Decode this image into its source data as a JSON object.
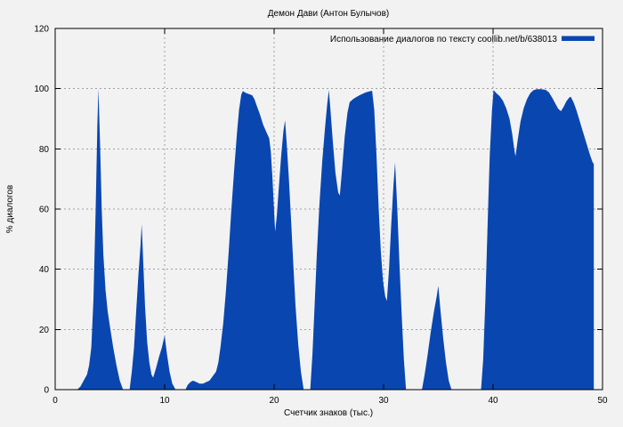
{
  "chart_data": {
    "type": "area",
    "title": "Демон Дави (Антон Булычов)",
    "xlabel": "Счетчик знаков (тыс.)",
    "ylabel": "% диалогов",
    "xlim": [
      0,
      50
    ],
    "ylim": [
      0,
      120
    ],
    "xticks": [
      "0",
      "10",
      "20",
      "30",
      "40",
      "50"
    ],
    "yticks": [
      "0",
      "20",
      "40",
      "60",
      "80",
      "100",
      "120"
    ],
    "grid": true,
    "grid_style": "dashed",
    "legend": {
      "label": "Использование диалогов по тексту coollib.net/b/638013",
      "position": "top-right",
      "swatch_color": "#0a46b0"
    },
    "series": [
      {
        "name": "Использование диалогов по тексту coollib.net/b/638013",
        "color": "#0a46b0",
        "x_unit": "тыс. знаков",
        "y_unit": "% диалогов",
        "points": [
          [
            2.0,
            0
          ],
          [
            2.3,
            1
          ],
          [
            2.6,
            3
          ],
          [
            2.9,
            5
          ],
          [
            3.1,
            8
          ],
          [
            3.3,
            14
          ],
          [
            3.5,
            30
          ],
          [
            3.7,
            60
          ],
          [
            3.85,
            88
          ],
          [
            3.95,
            100
          ],
          [
            4.1,
            82
          ],
          [
            4.25,
            60
          ],
          [
            4.4,
            45
          ],
          [
            4.6,
            33
          ],
          [
            4.8,
            26
          ],
          [
            5.0,
            21
          ],
          [
            5.3,
            14
          ],
          [
            5.6,
            8
          ],
          [
            5.9,
            3
          ],
          [
            6.2,
            0
          ],
          [
            6.8,
            0
          ],
          [
            7.0,
            6
          ],
          [
            7.2,
            14
          ],
          [
            7.4,
            26
          ],
          [
            7.6,
            38
          ],
          [
            7.8,
            48
          ],
          [
            7.9,
            55
          ],
          [
            8.05,
            42
          ],
          [
            8.2,
            28
          ],
          [
            8.4,
            16
          ],
          [
            8.6,
            9
          ],
          [
            8.8,
            5
          ],
          [
            8.95,
            4
          ],
          [
            9.2,
            7
          ],
          [
            9.5,
            11
          ],
          [
            9.75,
            14
          ],
          [
            10.0,
            18
          ],
          [
            10.2,
            12
          ],
          [
            10.45,
            6
          ],
          [
            10.7,
            2
          ],
          [
            11.0,
            0
          ],
          [
            11.9,
            0
          ],
          [
            12.1,
            1.5
          ],
          [
            12.35,
            2.5
          ],
          [
            12.6,
            3
          ],
          [
            12.9,
            2.5
          ],
          [
            13.2,
            2
          ],
          [
            13.5,
            2
          ],
          [
            13.8,
            2.5
          ],
          [
            14.1,
            3
          ],
          [
            14.4,
            4.5
          ],
          [
            14.7,
            6
          ],
          [
            14.9,
            9
          ],
          [
            15.1,
            14
          ],
          [
            15.35,
            22
          ],
          [
            15.6,
            33
          ],
          [
            15.85,
            46
          ],
          [
            16.1,
            60
          ],
          [
            16.35,
            73
          ],
          [
            16.6,
            85
          ],
          [
            16.8,
            93
          ],
          [
            17.0,
            98
          ],
          [
            17.15,
            99.2
          ],
          [
            17.4,
            98.6
          ],
          [
            17.7,
            98.2
          ],
          [
            18.0,
            97.8
          ],
          [
            18.2,
            96.5
          ],
          [
            18.45,
            94
          ],
          [
            18.7,
            91.5
          ],
          [
            19.0,
            88
          ],
          [
            19.3,
            85.5
          ],
          [
            19.55,
            83.5
          ],
          [
            19.7,
            79
          ],
          [
            19.85,
            70
          ],
          [
            20.0,
            59
          ],
          [
            20.1,
            52.5
          ],
          [
            20.25,
            58
          ],
          [
            20.45,
            68
          ],
          [
            20.65,
            78
          ],
          [
            20.85,
            86
          ],
          [
            21.0,
            89.5
          ],
          [
            21.15,
            82
          ],
          [
            21.35,
            70
          ],
          [
            21.55,
            56
          ],
          [
            21.75,
            42
          ],
          [
            21.95,
            28
          ],
          [
            22.2,
            15
          ],
          [
            22.45,
            6
          ],
          [
            22.7,
            0
          ],
          [
            23.3,
            0
          ],
          [
            23.5,
            12
          ],
          [
            23.7,
            28
          ],
          [
            23.9,
            45
          ],
          [
            24.15,
            62
          ],
          [
            24.4,
            76
          ],
          [
            24.65,
            87
          ],
          [
            24.85,
            95
          ],
          [
            25.0,
            99.5
          ],
          [
            25.15,
            93
          ],
          [
            25.35,
            83
          ],
          [
            25.6,
            72
          ],
          [
            25.85,
            65.5
          ],
          [
            26.0,
            64.5
          ],
          [
            26.2,
            73
          ],
          [
            26.45,
            84
          ],
          [
            26.7,
            92
          ],
          [
            26.9,
            95.5
          ],
          [
            27.2,
            96.5
          ],
          [
            27.5,
            97.2
          ],
          [
            27.8,
            97.8
          ],
          [
            28.1,
            98.3
          ],
          [
            28.4,
            98.8
          ],
          [
            28.7,
            99.1
          ],
          [
            28.95,
            99.3
          ],
          [
            29.15,
            93
          ],
          [
            29.35,
            78
          ],
          [
            29.55,
            60
          ],
          [
            29.75,
            46
          ],
          [
            29.95,
            36
          ],
          [
            30.15,
            31
          ],
          [
            30.3,
            29.5
          ],
          [
            30.5,
            40
          ],
          [
            30.7,
            55
          ],
          [
            30.9,
            68
          ],
          [
            31.05,
            75.5
          ],
          [
            31.25,
            60
          ],
          [
            31.45,
            42
          ],
          [
            31.65,
            25
          ],
          [
            31.85,
            10
          ],
          [
            32.05,
            0
          ],
          [
            33.5,
            0
          ],
          [
            33.75,
            5
          ],
          [
            34.0,
            11
          ],
          [
            34.3,
            19
          ],
          [
            34.6,
            26
          ],
          [
            34.85,
            31
          ],
          [
            35.0,
            34.5
          ],
          [
            35.2,
            26
          ],
          [
            35.45,
            17
          ],
          [
            35.7,
            9
          ],
          [
            35.95,
            3
          ],
          [
            36.2,
            0
          ],
          [
            38.9,
            0
          ],
          [
            39.1,
            10
          ],
          [
            39.3,
            30
          ],
          [
            39.5,
            55
          ],
          [
            39.7,
            78
          ],
          [
            39.9,
            93
          ],
          [
            40.05,
            99.5
          ],
          [
            40.3,
            98.5
          ],
          [
            40.6,
            97.5
          ],
          [
            40.9,
            96
          ],
          [
            41.2,
            93.5
          ],
          [
            41.5,
            90
          ],
          [
            41.75,
            85
          ],
          [
            41.95,
            79.5
          ],
          [
            42.05,
            77.5
          ],
          [
            42.25,
            83
          ],
          [
            42.5,
            89
          ],
          [
            42.8,
            93.5
          ],
          [
            43.1,
            96.5
          ],
          [
            43.4,
            98.5
          ],
          [
            43.7,
            99.5
          ],
          [
            44.0,
            99.8
          ],
          [
            44.4,
            99.8
          ],
          [
            44.8,
            99.6
          ],
          [
            45.1,
            98.8
          ],
          [
            45.4,
            97
          ],
          [
            45.7,
            95
          ],
          [
            45.95,
            93.3
          ],
          [
            46.2,
            92.5
          ],
          [
            46.45,
            94
          ],
          [
            46.7,
            95.8
          ],
          [
            46.95,
            97
          ],
          [
            47.1,
            97.3
          ],
          [
            47.35,
            95.5
          ],
          [
            47.6,
            93
          ],
          [
            47.85,
            90
          ],
          [
            48.1,
            87
          ],
          [
            48.35,
            84
          ],
          [
            48.6,
            81
          ],
          [
            48.85,
            78
          ],
          [
            49.1,
            75.5
          ],
          [
            49.2,
            75
          ]
        ]
      }
    ]
  },
  "colors": {
    "background": "#f2f2f2",
    "fill": "#0a46b0",
    "grid": "#a0a0a0",
    "border": "#000000",
    "text": "#000000"
  }
}
